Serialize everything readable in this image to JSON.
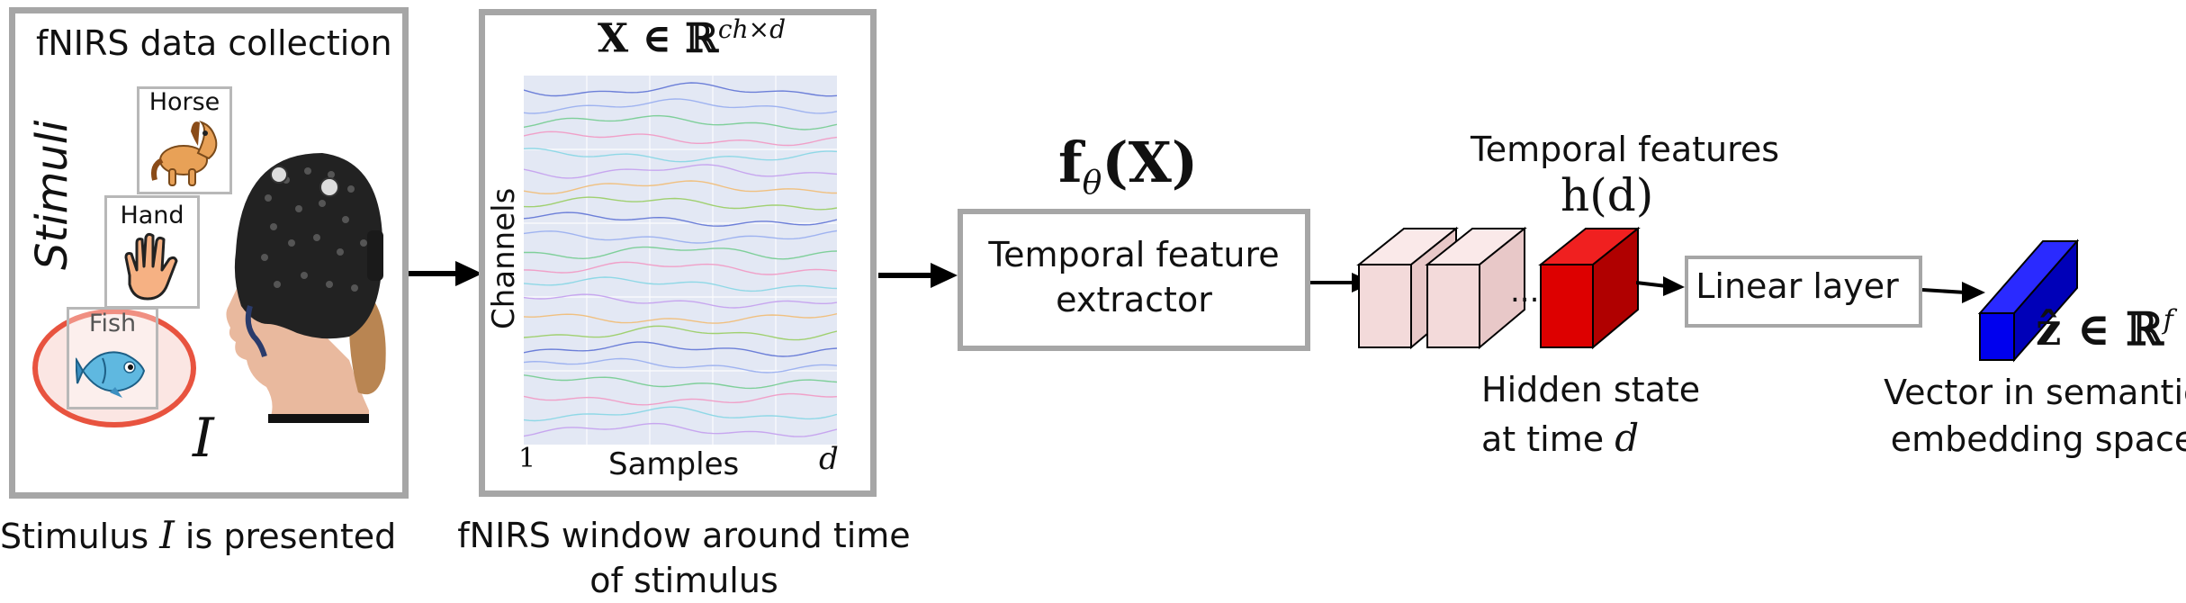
{
  "panel1": {
    "title": "fNIRS data collection",
    "stimuli_label": "Stimuli",
    "cards": [
      {
        "label": "Horse",
        "icon": "horse-icon"
      },
      {
        "label": "Hand",
        "icon": "hand-icon"
      },
      {
        "label": "Fish",
        "icon": "fish-icon"
      }
    ],
    "image_symbol": "I",
    "caption_pre": "Stimulus",
    "caption_symbol": "I",
    "caption_post": "is presented",
    "colors": {
      "border": "#a6a6a6",
      "highlight": "#e8533f"
    }
  },
  "panel2": {
    "title": "X ∈ ℝ",
    "title_sup": "ch×d",
    "ylabel": "Channels",
    "xlabel": "Samples",
    "x_start": "1",
    "x_end": "d",
    "caption_line1": "fNIRS window around time",
    "caption_line2": "of stimulus",
    "plot_bg": "#e3e8f4"
  },
  "extractor": {
    "formula_main": "f",
    "formula_sub": "θ",
    "formula_arg": "(X)",
    "label_line1": "Temporal feature",
    "label_line2": "extractor"
  },
  "hidden": {
    "title": "Temporal features",
    "formula": "h(d)",
    "ellipsis": "...",
    "label_line1": "Hidden state",
    "label_line2_pre": "at time",
    "label_line2_var": "d",
    "colors": {
      "pink": "#f3dada",
      "pink_top": "#fae9e9",
      "pink_side": "#e8c8c8",
      "red": "#dd0000",
      "red_top": "#f02020",
      "red_side": "#b00000"
    }
  },
  "linear": {
    "label": "Linear layer"
  },
  "output": {
    "formula": "ẑ ∈ ℝ",
    "formula_sup": "f",
    "label_line1": "Vector in semantic",
    "label_line2": "embedding space",
    "colors": {
      "front": "#0000ee",
      "top": "#2a2aff",
      "side": "#0000b8"
    }
  }
}
